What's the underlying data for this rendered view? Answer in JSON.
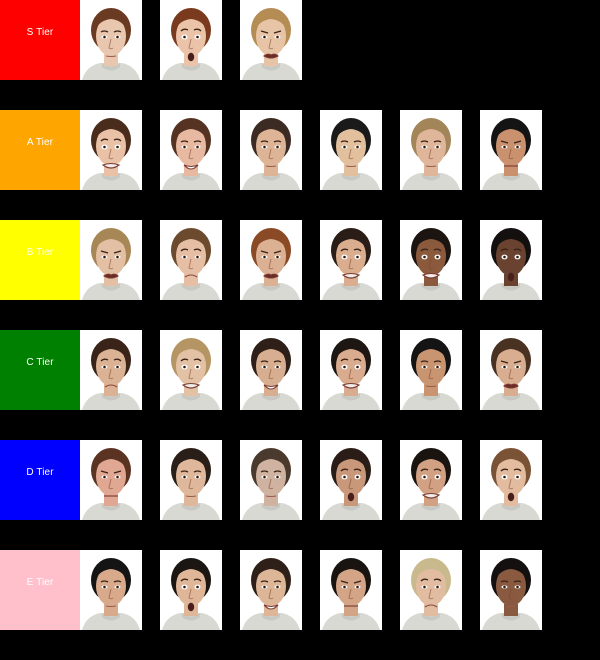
{
  "tiers": [
    {
      "label": "S Tier",
      "color": "#ff0000",
      "faces": [
        {
          "name": "face-photo",
          "skin": "#e9c6ae",
          "hair": "#6b3a22",
          "shirt": "#d9d9d4",
          "expression": "neutral"
        },
        {
          "name": "face-photo",
          "skin": "#ebc3a8",
          "hair": "#7a3a1e",
          "shirt": "#d9d9d4",
          "expression": "surprise"
        },
        {
          "name": "face-photo",
          "skin": "#e8c4a6",
          "hair": "#b58c54",
          "shirt": "#d9d9d4",
          "expression": "disgust"
        }
      ]
    },
    {
      "label": "A Tier",
      "color": "#ffa500",
      "faces": [
        {
          "name": "face-photo",
          "skin": "#e9c1a6",
          "hair": "#4a2c1c",
          "shirt": "#d9d9d4",
          "expression": "fear"
        },
        {
          "name": "face-photo",
          "skin": "#e7b9a0",
          "hair": "#553222",
          "shirt": "#d9d9d4",
          "expression": "happy"
        },
        {
          "name": "face-photo",
          "skin": "#deb497",
          "hair": "#3b2b22",
          "shirt": "#d9d9d4",
          "expression": "neutral"
        },
        {
          "name": "face-photo",
          "skin": "#e3c09d",
          "hair": "#1a1a1a",
          "shirt": "#d9d9d4",
          "expression": "neutral"
        },
        {
          "name": "face-photo",
          "skin": "#e0b69a",
          "hair": "#a3855a",
          "shirt": "#d9d9d4",
          "expression": "neutral"
        },
        {
          "name": "face-photo",
          "skin": "#c9916e",
          "hair": "#141414",
          "shirt": "#d9d9d4",
          "expression": "angry"
        }
      ]
    },
    {
      "label": "B Tier",
      "color": "#ffff00",
      "faces": [
        {
          "name": "face-photo",
          "skin": "#e3bfa3",
          "hair": "#a88757",
          "shirt": "#d9d9d4",
          "expression": "disgust"
        },
        {
          "name": "face-photo",
          "skin": "#e6bea4",
          "hair": "#6c4a2e",
          "shirt": "#d9d9d4",
          "expression": "sad"
        },
        {
          "name": "face-photo",
          "skin": "#dcb093",
          "hair": "#8a4a26",
          "shirt": "#d9d9d4",
          "expression": "disgust"
        },
        {
          "name": "face-photo",
          "skin": "#d9ad8d",
          "hair": "#2a1c16",
          "shirt": "#d9d9d4",
          "expression": "fear"
        },
        {
          "name": "face-photo",
          "skin": "#8b5a3c",
          "hair": "#1c1410",
          "shirt": "#d9d9d4",
          "expression": "fear"
        },
        {
          "name": "face-photo",
          "skin": "#6a4230",
          "hair": "#141010",
          "shirt": "#d9d9d4",
          "expression": "surprise"
        }
      ]
    },
    {
      "label": "C Tier",
      "color": "#008000",
      "faces": [
        {
          "name": "face-photo",
          "skin": "#dcb295",
          "hair": "#3a241a",
          "shirt": "#d9d9d4",
          "expression": "sad"
        },
        {
          "name": "face-photo",
          "skin": "#e3c1a5",
          "hair": "#b49563",
          "shirt": "#d9d9d4",
          "expression": "fear"
        },
        {
          "name": "face-photo",
          "skin": "#d8ae90",
          "hair": "#2e2018",
          "shirt": "#d9d9d4",
          "expression": "happy"
        },
        {
          "name": "face-photo",
          "skin": "#d9ac8f",
          "hair": "#1e1612",
          "shirt": "#d9d9d4",
          "expression": "fear"
        },
        {
          "name": "face-photo",
          "skin": "#c99470",
          "hair": "#141414",
          "shirt": "#d9d9d4",
          "expression": "neutral"
        },
        {
          "name": "face-photo",
          "skin": "#d8ad90",
          "hair": "#4a3222",
          "shirt": "#d9d9d4",
          "expression": "disgust"
        }
      ]
    },
    {
      "label": "D Tier",
      "color": "#0000ff",
      "faces": [
        {
          "name": "face-photo",
          "skin": "#e0a792",
          "hair": "#5a3322",
          "shirt": "#d9d9d4",
          "expression": "angry"
        },
        {
          "name": "face-photo",
          "skin": "#dfb89b",
          "hair": "#2a1e18",
          "shirt": "#d9d9d4",
          "expression": "neutral"
        },
        {
          "name": "face-photo",
          "skin": "#cfb2a0",
          "hair": "#4a3a2e",
          "shirt": "#d9d9d4",
          "expression": "neutral"
        },
        {
          "name": "face-photo",
          "skin": "#c9987a",
          "hair": "#2a1c16",
          "shirt": "#d9d9d4",
          "expression": "surprise"
        },
        {
          "name": "face-photo",
          "skin": "#d2a184",
          "hair": "#1a1410",
          "shirt": "#d9d9d4",
          "expression": "fear"
        },
        {
          "name": "face-photo",
          "skin": "#e3bca0",
          "hair": "#7a5236",
          "shirt": "#d9d9d4",
          "expression": "surprise"
        }
      ]
    },
    {
      "label": "E Tier",
      "color": "#ffc0cb",
      "faces": [
        {
          "name": "face-photo",
          "skin": "#d8a98a",
          "hair": "#141414",
          "shirt": "#d9d9d4",
          "expression": "neutral"
        },
        {
          "name": "face-photo",
          "skin": "#e0b699",
          "hair": "#1c1612",
          "shirt": "#d9d9d4",
          "expression": "surprise"
        },
        {
          "name": "face-photo",
          "skin": "#ddb597",
          "hair": "#2e2018",
          "shirt": "#d9d9d4",
          "expression": "happy"
        },
        {
          "name": "face-photo",
          "skin": "#d3a486",
          "hair": "#1a1410",
          "shirt": "#d9d9d4",
          "expression": "angry"
        },
        {
          "name": "face-photo",
          "skin": "#e1bca0",
          "hair": "#c9ba8e",
          "shirt": "#d9d9d4",
          "expression": "sad"
        },
        {
          "name": "face-photo",
          "skin": "#8a5a40",
          "hair": "#141010",
          "shirt": "#d9d9d4",
          "expression": "neutral"
        }
      ]
    }
  ]
}
